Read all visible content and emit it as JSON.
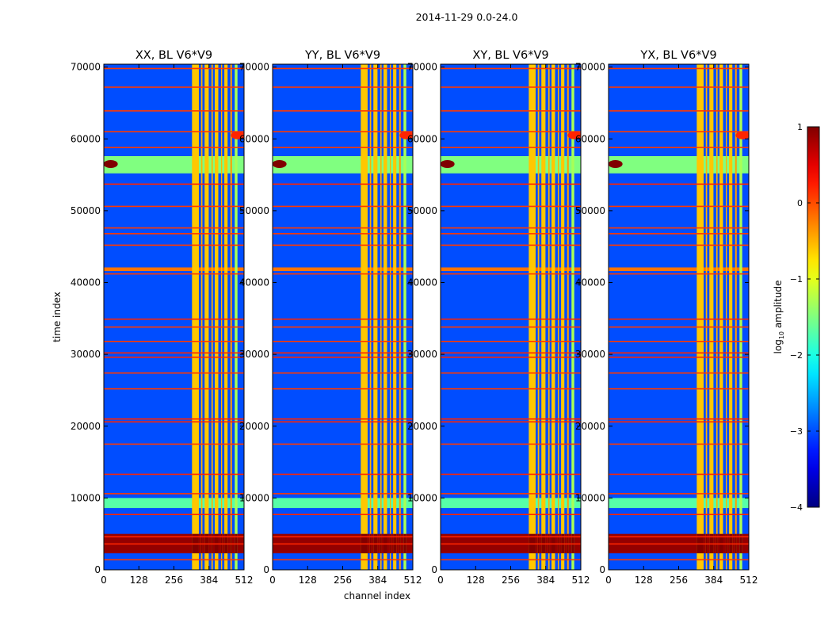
{
  "figure": {
    "suptitle": "2014-11-29 0.0-24.0",
    "xlabel": "channel index",
    "ylabel": "time index"
  },
  "chart_data": {
    "type": "heatmap",
    "x_range": [
      0,
      512
    ],
    "y_range": [
      0,
      70400
    ],
    "x_ticks": [
      0,
      128,
      256,
      384,
      512
    ],
    "y_ticks": [
      0,
      10000,
      20000,
      30000,
      40000,
      50000,
      60000,
      70000
    ],
    "panels": [
      {
        "id": "xx",
        "title": "XX, BL V6*V9"
      },
      {
        "id": "yy",
        "title": "YY, BL V6*V9"
      },
      {
        "id": "xy",
        "title": "XY, BL V6*V9"
      },
      {
        "id": "yx",
        "title": "YX, BL V6*V9"
      }
    ],
    "colorbar": {
      "label_prefix": "log",
      "label_sub": "10",
      "label_suffix": " amplitude",
      "min": -4,
      "max": 1,
      "ticks": [
        {
          "value": 1,
          "label": "1"
        },
        {
          "value": 0,
          "label": "0"
        },
        {
          "value": -1,
          "label": "−1"
        },
        {
          "value": -2,
          "label": "−2"
        },
        {
          "value": -3,
          "label": "−3"
        },
        {
          "value": -4,
          "label": "−4"
        }
      ],
      "colormap": "jet"
    },
    "background_level": -3.0,
    "channel_bands": [
      {
        "x": [
          322,
          347
        ],
        "level": -0.6
      },
      {
        "x": [
          355,
          360
        ],
        "level": -0.5
      },
      {
        "x": [
          368,
          383
        ],
        "level": -0.6
      },
      {
        "x": [
          393,
          398
        ],
        "level": -0.5
      },
      {
        "x": [
          405,
          418
        ],
        "level": -0.6
      },
      {
        "x": [
          428,
          432
        ],
        "level": -0.5
      },
      {
        "x": [
          440,
          452
        ],
        "level": -0.6
      },
      {
        "x": [
          462,
          468
        ],
        "level": -0.4
      },
      {
        "x": [
          478,
          488
        ],
        "level": -1.3
      }
    ],
    "time_lines": [
      {
        "t": 1400,
        "level": 0.1
      },
      {
        "t": 3600,
        "level": 0.2
      },
      {
        "t": 4600,
        "level": 0.2
      },
      {
        "t": 7700,
        "level": 0.2
      },
      {
        "t": 10600,
        "level": 0.1
      },
      {
        "t": 13300,
        "level": 0.2
      },
      {
        "t": 17500,
        "level": 0.1
      },
      {
        "t": 20600,
        "level": 0.2
      },
      {
        "t": 21000,
        "level": 0.2
      },
      {
        "t": 25200,
        "level": 0.1
      },
      {
        "t": 27400,
        "level": 0.1
      },
      {
        "t": 29600,
        "level": 0.2
      },
      {
        "t": 30200,
        "level": 0.2
      },
      {
        "t": 31800,
        "level": 0.1
      },
      {
        "t": 33800,
        "level": 0.1
      },
      {
        "t": 34900,
        "level": 0.2
      },
      {
        "t": 41200,
        "level": 0.1
      },
      {
        "t": 45200,
        "level": 0.1
      },
      {
        "t": 46800,
        "level": 0.1
      },
      {
        "t": 47600,
        "level": 0.1
      },
      {
        "t": 50600,
        "level": 0.1
      },
      {
        "t": 53700,
        "level": 0.2
      },
      {
        "t": 58800,
        "level": 0.1
      },
      {
        "t": 61000,
        "level": 0.1
      },
      {
        "t": 63900,
        "level": 0.1
      },
      {
        "t": 67200,
        "level": 0.1
      },
      {
        "t": 69800,
        "level": 0.1
      }
    ],
    "time_bands": [
      {
        "t": [
          2300,
          5000
        ],
        "level": 0.9
      },
      {
        "t": [
          8600,
          10000
        ],
        "level": -1.7
      },
      {
        "t": [
          55200,
          57600
        ],
        "level": -1.5
      },
      {
        "t": [
          41600,
          42100
        ],
        "level": -0.2
      }
    ],
    "hotspots": [
      {
        "x": 25,
        "t": 56500,
        "level": 1.0
      },
      {
        "x": 490,
        "t": 60500,
        "level": 0.2
      }
    ]
  }
}
